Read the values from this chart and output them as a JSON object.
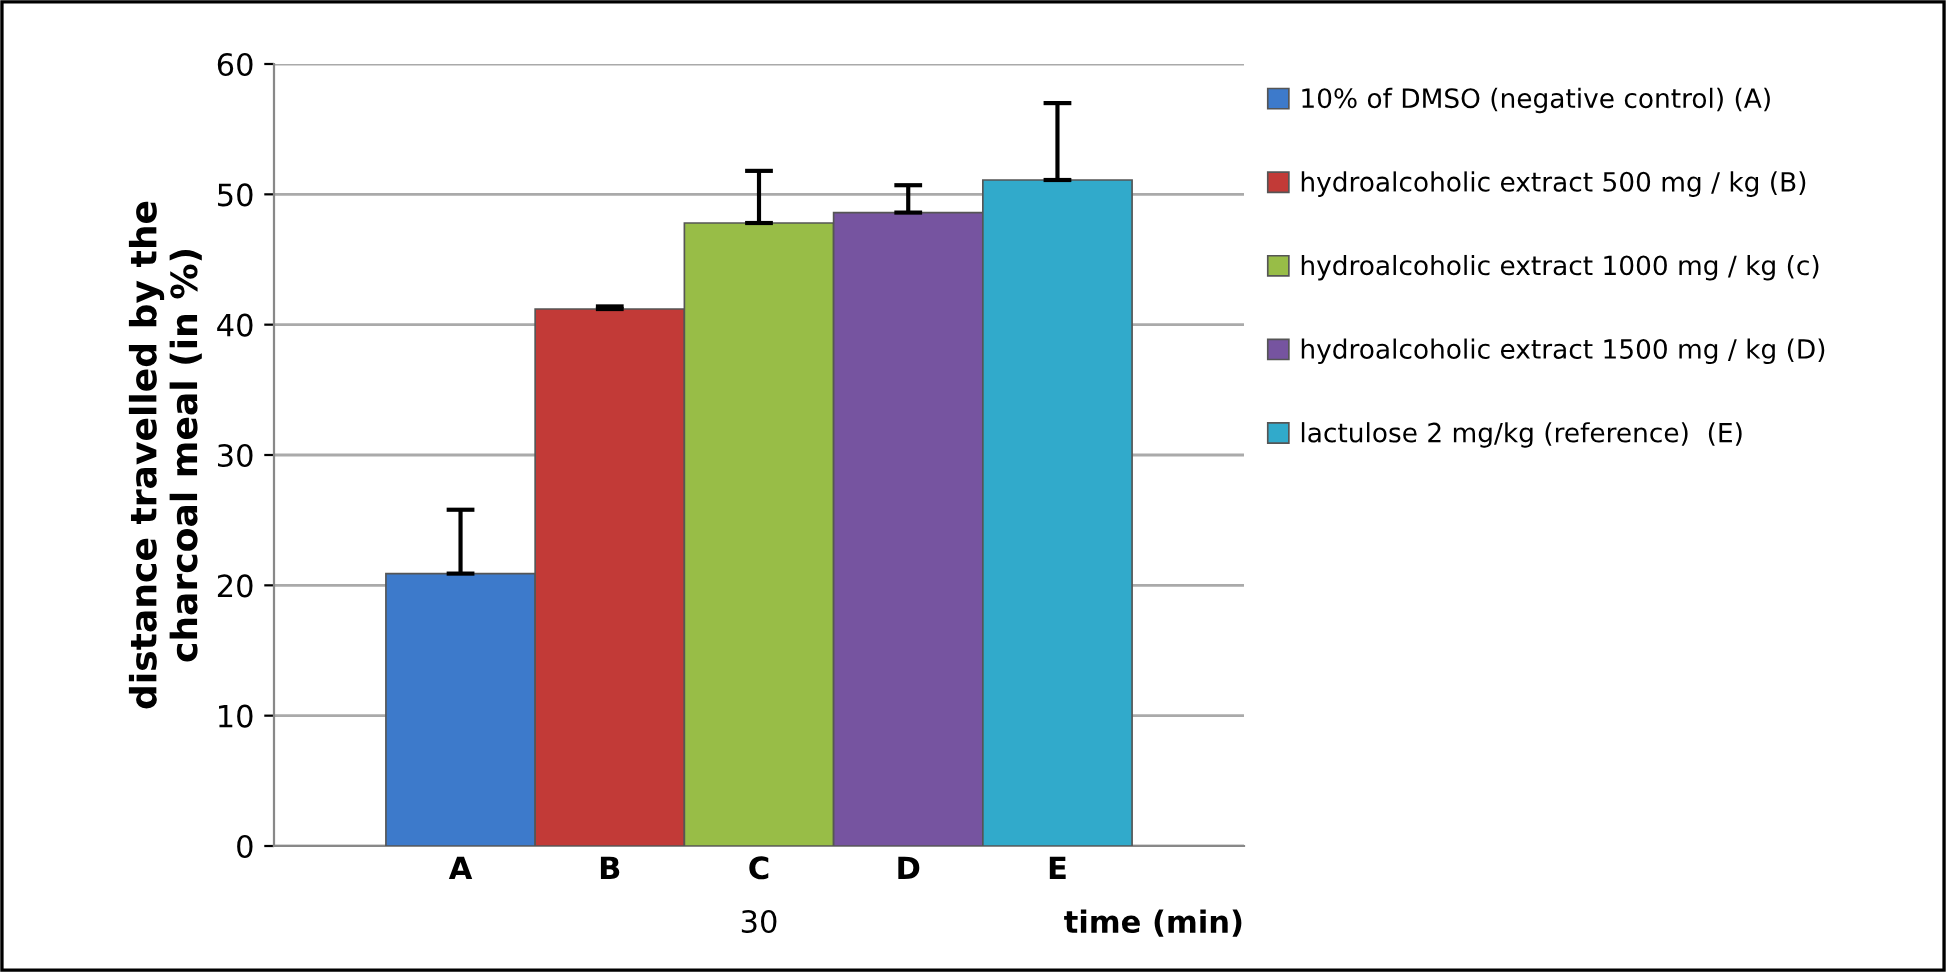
{
  "chart_data": {
    "type": "bar",
    "xlabel": "time (min)",
    "ylabel": "distance travelled by the\ncharcoal meal (in %)",
    "categories": [
      "A",
      "B",
      "C",
      "D",
      "E"
    ],
    "series": [
      {
        "name": "10% of DMSO (negative control) (A)",
        "color": "#3d7acb",
        "values": [
          20.9,
          null,
          null,
          null,
          null
        ],
        "errors": [
          [
            20.9,
            25.8
          ],
          null,
          null,
          null,
          null
        ]
      },
      {
        "name": "hydroalcoholic extract 500 mg / kg (B)",
        "color": "#c23a37",
        "values": [
          null,
          41.2,
          null,
          null,
          null
        ],
        "errors": [
          null,
          [
            41.2,
            41.4
          ],
          null,
          null,
          null
        ]
      },
      {
        "name": "hydroalcoholic extract 1000 mg / kg (c)",
        "color": "#98bd47",
        "values": [
          null,
          null,
          47.8,
          null,
          null
        ],
        "errors": [
          null,
          null,
          [
            47.8,
            51.8
          ],
          null,
          null
        ]
      },
      {
        "name": "hydroalcoholic extract 1500 mg / kg (D)",
        "color": "#7654a0",
        "values": [
          null,
          null,
          null,
          48.6,
          null
        ],
        "errors": [
          null,
          null,
          null,
          [
            48.6,
            50.7
          ],
          null
        ]
      },
      {
        "name": "lactulose 2 mg/kg (reference)  (E)",
        "color": "#31aacb",
        "values": [
          null,
          null,
          null,
          null,
          51.1
        ],
        "errors": [
          null,
          null,
          null,
          null,
          [
            51.1,
            57.0
          ]
        ]
      }
    ],
    "annotations": [
      "30"
    ],
    "ylim": [
      0,
      60
    ],
    "yticks": [
      0,
      10,
      20,
      30,
      40,
      50,
      60
    ],
    "grid": "y",
    "legend": "right"
  }
}
